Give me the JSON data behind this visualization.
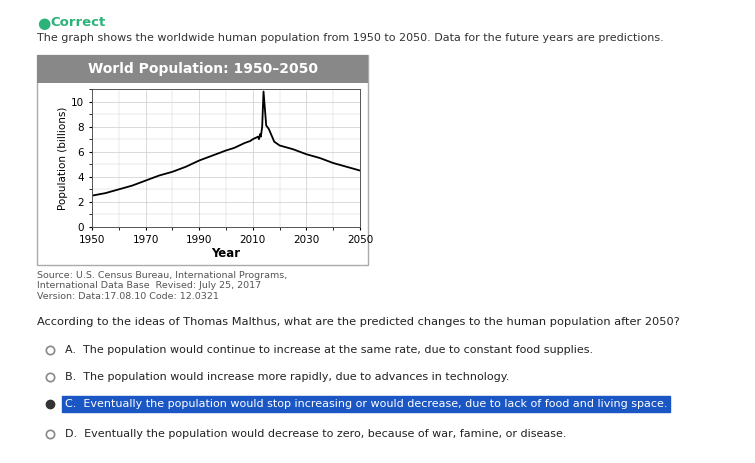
{
  "title": "World Population: 1950–2050",
  "xlabel": "Year",
  "ylabel": "Population (billions)",
  "xlim": [
    1950,
    2050
  ],
  "ylim": [
    0,
    11
  ],
  "yticks": [
    0,
    2,
    4,
    6,
    8,
    10
  ],
  "xticks": [
    1950,
    1970,
    1990,
    2010,
    2030,
    2050
  ],
  "years": [
    1950,
    1955,
    1960,
    1965,
    1970,
    1975,
    1980,
    1985,
    1990,
    1995,
    2000,
    2003,
    2005,
    2007,
    2009,
    2010,
    2011,
    2012,
    2012.3,
    2012.7,
    2013,
    2013.5,
    2014,
    2015,
    2016,
    2017,
    2018,
    2020,
    2025,
    2030,
    2035,
    2040,
    2045,
    2050
  ],
  "population": [
    2.5,
    2.7,
    3.0,
    3.3,
    3.7,
    4.1,
    4.4,
    4.8,
    5.3,
    5.7,
    6.1,
    6.3,
    6.5,
    6.7,
    6.85,
    7.0,
    7.1,
    7.2,
    7.0,
    7.4,
    7.2,
    8.0,
    10.8,
    8.1,
    7.8,
    7.3,
    6.8,
    6.5,
    6.2,
    5.8,
    5.5,
    5.1,
    4.8,
    4.5
  ],
  "line_color": "#000000",
  "line_width": 1.3,
  "bg_color": "#ffffff",
  "title_bg_color": "#888888",
  "title_text_color": "#ffffff",
  "grid_color": "#cccccc",
  "page_bg": "#ffffff",
  "source_text": "Source: U.S. Census Bureau, International Programs,\nInternational Data Base  Revised: July 25, 2017\nVersion: Data:17.08.10 Code: 12.0321",
  "correct_icon_color": "#2db37a",
  "correct_text": "Correct",
  "description_text": "The graph shows the worldwide human population from 1950 to 2050. Data for the future years are predictions.",
  "question_text": "According to the ideas of Thomas Malthus, what are the predicted changes to the human population after 2050?",
  "options": [
    {
      "label": "A.",
      "text": "The population would continue to increase at the same rate, due to constant food supplies.",
      "selected": false,
      "correct": false
    },
    {
      "label": "B.",
      "text": "The population would increase more rapidly, due to advances in technology.",
      "selected": false,
      "correct": false
    },
    {
      "label": "C.",
      "text": "Eventually the population would stop increasing or would decrease, due to lack of food and living space.",
      "selected": true,
      "correct": true
    },
    {
      "label": "D.",
      "text": "Eventually the population would decrease to zero, because of war, famine, or disease.",
      "selected": false,
      "correct": false
    }
  ],
  "highlight_color": "#1a56c4",
  "highlight_text_color": "#ffffff"
}
